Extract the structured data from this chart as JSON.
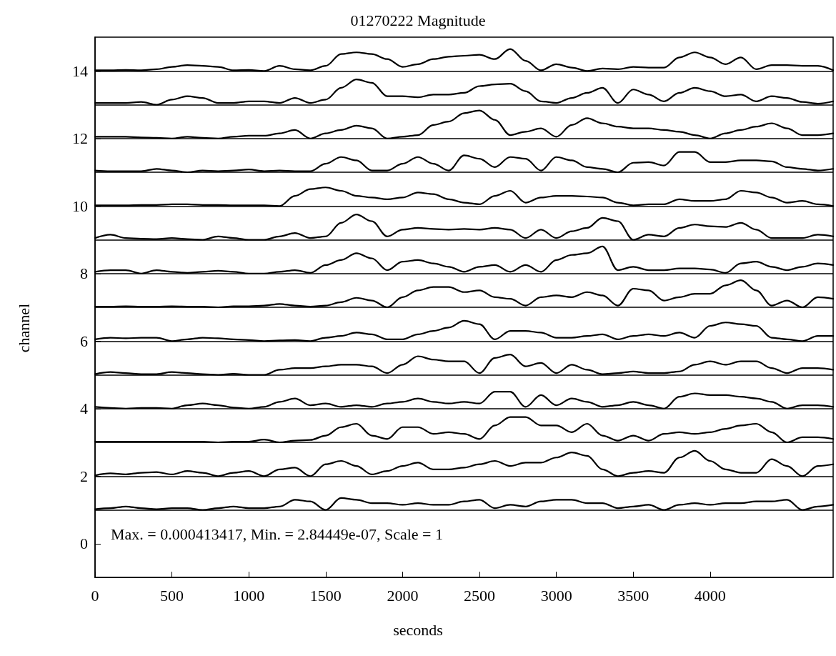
{
  "chart_data": {
    "type": "line",
    "title": "01270222 Magnitude",
    "xlabel": "seconds",
    "ylabel": "channel",
    "annotations": [
      "Max. = 0.000413417, Min. = 2.84449e-07, Scale = 1"
    ],
    "xlim": [
      0,
      4800
    ],
    "xticks": [
      0,
      500,
      1000,
      1500,
      2000,
      2500,
      3000,
      3500,
      4000
    ],
    "ylim": [
      -1,
      15
    ],
    "yticks": [
      0,
      2,
      4,
      6,
      8,
      10,
      12,
      14
    ],
    "marker": "none",
    "line_style": "solid",
    "ref_lines": [
      {
        "axis": "y",
        "value": 14
      },
      {
        "axis": "y",
        "value": 13
      },
      {
        "axis": "y",
        "value": 12
      },
      {
        "axis": "y",
        "value": 11
      },
      {
        "axis": "y",
        "value": 10
      },
      {
        "axis": "y",
        "value": 9
      },
      {
        "axis": "y",
        "value": 8
      },
      {
        "axis": "y",
        "value": 7
      },
      {
        "axis": "y",
        "value": 6
      },
      {
        "axis": "y",
        "value": 5
      },
      {
        "axis": "y",
        "value": 4
      },
      {
        "axis": "y",
        "value": 3
      },
      {
        "axis": "y",
        "value": 2
      },
      {
        "axis": "y",
        "value": 1
      }
    ],
    "x": [
      0,
      100,
      200,
      300,
      400,
      500,
      600,
      700,
      800,
      900,
      1000,
      1100,
      1200,
      1300,
      1400,
      1500,
      1600,
      1700,
      1800,
      1900,
      2000,
      2100,
      2200,
      2300,
      2400,
      2500,
      2600,
      2700,
      2800,
      2900,
      3000,
      3100,
      3200,
      3300,
      3400,
      3500,
      3600,
      3700,
      3800,
      3900,
      4000,
      4100,
      4200,
      4300,
      4400,
      4500,
      4600,
      4700,
      4800
    ],
    "series": [
      {
        "color": "#000000",
        "values": [
          14.02,
          14.02,
          14.03,
          14.02,
          14.05,
          14.12,
          14.17,
          14.15,
          14.12,
          14.02,
          14.03,
          14,
          14.15,
          14.05,
          14.02,
          14.15,
          14.5,
          14.55,
          14.5,
          14.35,
          14.12,
          14.2,
          14.35,
          14.42,
          14.45,
          14.48,
          14.35,
          14.65,
          14.3,
          14.02,
          14.2,
          14.1,
          14,
          14.07,
          14.05,
          14.12,
          14.1,
          14.1,
          14.4,
          14.55,
          14.4,
          14.2,
          14.4,
          14.05,
          14.17,
          14.17,
          14.15,
          14.15,
          14.02
        ]
      },
      {
        "color": "#000000",
        "values": [
          13.05,
          13.05,
          13.05,
          13.08,
          13,
          13.15,
          13.25,
          13.2,
          13.05,
          13.05,
          13.1,
          13.1,
          13.05,
          13.2,
          13.05,
          13.15,
          13.5,
          13.75,
          13.65,
          13.25,
          13.25,
          13.22,
          13.3,
          13.3,
          13.35,
          13.55,
          13.6,
          13.62,
          13.4,
          13.1,
          13.05,
          13.2,
          13.35,
          13.5,
          13.05,
          13.45,
          13.3,
          13.1,
          13.35,
          13.5,
          13.4,
          13.25,
          13.3,
          13.1,
          13.25,
          13.2,
          13.08,
          13.03,
          13.1
        ]
      },
      {
        "color": "#000000",
        "values": [
          12.05,
          12.05,
          12.05,
          12.03,
          12.02,
          12,
          12.05,
          12.02,
          12,
          12.05,
          12.08,
          12.08,
          12.15,
          12.25,
          12,
          12.15,
          12.25,
          12.38,
          12.3,
          12,
          12.05,
          12.1,
          12.4,
          12.5,
          12.75,
          12.83,
          12.55,
          12.1,
          12.2,
          12.3,
          12.05,
          12.4,
          12.6,
          12.45,
          12.35,
          12.3,
          12.3,
          12.25,
          12.2,
          12.1,
          12,
          12.15,
          12.25,
          12.35,
          12.45,
          12.3,
          12.1,
          12.1,
          12.15
        ]
      },
      {
        "color": "#000000",
        "values": [
          11.05,
          11.03,
          11.03,
          11.03,
          11.1,
          11.05,
          11,
          11.05,
          11.03,
          11.05,
          11.08,
          11.03,
          11.05,
          11.03,
          11.03,
          11.25,
          11.45,
          11.35,
          11.05,
          11.05,
          11.25,
          11.45,
          11.25,
          11.05,
          11.5,
          11.4,
          11.15,
          11.45,
          11.4,
          11.05,
          11.45,
          11.35,
          11.15,
          11.1,
          11,
          11.28,
          11.3,
          11.2,
          11.6,
          11.6,
          11.3,
          11.3,
          11.35,
          11.35,
          11.32,
          11.15,
          11.1,
          11.05,
          11.1
        ]
      },
      {
        "color": "#000000",
        "values": [
          10.02,
          10.02,
          10.02,
          10.03,
          10.03,
          10.05,
          10.05,
          10.03,
          10.03,
          10.02,
          10.02,
          10.02,
          10,
          10.3,
          10.5,
          10.55,
          10.45,
          10.3,
          10.25,
          10.2,
          10.25,
          10.4,
          10.35,
          10.2,
          10.1,
          10.05,
          10.3,
          10.45,
          10.1,
          10.25,
          10.3,
          10.3,
          10.28,
          10.25,
          10.1,
          10.02,
          10.05,
          10.05,
          10.2,
          10.15,
          10.15,
          10.2,
          10.45,
          10.4,
          10.25,
          10.1,
          10.15,
          10.05,
          10
        ]
      },
      {
        "color": "#000000",
        "values": [
          9.05,
          9.15,
          9.05,
          9.03,
          9.02,
          9.05,
          9.02,
          9,
          9.1,
          9.05,
          9,
          9,
          9.1,
          9.2,
          9.05,
          9.1,
          9.5,
          9.75,
          9.55,
          9.1,
          9.3,
          9.35,
          9.32,
          9.3,
          9.32,
          9.3,
          9.35,
          9.3,
          9.05,
          9.3,
          9.05,
          9.25,
          9.35,
          9.65,
          9.55,
          9,
          9.15,
          9.1,
          9.35,
          9.45,
          9.4,
          9.38,
          9.5,
          9.3,
          9.05,
          9.05,
          9.05,
          9.15,
          9.1
        ]
      },
      {
        "color": "#000000",
        "values": [
          8.05,
          8.1,
          8.1,
          8,
          8.1,
          8.05,
          8.02,
          8.05,
          8.08,
          8.05,
          8,
          8,
          8.05,
          8.1,
          8.02,
          8.25,
          8.4,
          8.6,
          8.45,
          8.1,
          8.35,
          8.4,
          8.3,
          8.2,
          8.05,
          8.2,
          8.25,
          8.05,
          8.25,
          8.05,
          8.4,
          8.55,
          8.6,
          8.8,
          8.1,
          8.2,
          8.1,
          8.1,
          8.15,
          8.15,
          8.12,
          8.02,
          8.3,
          8.35,
          8.2,
          8.1,
          8.2,
          8.3,
          8.25
        ]
      },
      {
        "color": "#000000",
        "values": [
          7.02,
          7.02,
          7.03,
          7.02,
          7.02,
          7.03,
          7.02,
          7.02,
          7,
          7.03,
          7.03,
          7.05,
          7.1,
          7.05,
          7.02,
          7.05,
          7.15,
          7.28,
          7.2,
          7,
          7.3,
          7.5,
          7.6,
          7.6,
          7.45,
          7.5,
          7.3,
          7.25,
          7.05,
          7.3,
          7.35,
          7.3,
          7.45,
          7.35,
          7.05,
          7.55,
          7.5,
          7.2,
          7.3,
          7.4,
          7.4,
          7.65,
          7.8,
          7.5,
          7.05,
          7.2,
          7,
          7.3,
          7.25
        ]
      },
      {
        "color": "#000000",
        "values": [
          6.05,
          6.1,
          6.08,
          6.1,
          6.1,
          6,
          6.05,
          6.1,
          6.08,
          6.05,
          6.03,
          6,
          6.02,
          6.03,
          6,
          6.1,
          6.15,
          6.25,
          6.2,
          6.05,
          6.05,
          6.2,
          6.3,
          6.4,
          6.6,
          6.5,
          6.05,
          6.3,
          6.3,
          6.25,
          6.1,
          6.1,
          6.15,
          6.2,
          6.05,
          6.15,
          6.2,
          6.15,
          6.25,
          6.1,
          6.45,
          6.55,
          6.5,
          6.45,
          6.1,
          6.05,
          6,
          6.15,
          6.15
        ]
      },
      {
        "color": "#000000",
        "values": [
          5.02,
          5.08,
          5.05,
          5.02,
          5.02,
          5.08,
          5.05,
          5.02,
          5,
          5.03,
          5,
          5,
          5.15,
          5.2,
          5.2,
          5.25,
          5.3,
          5.3,
          5.25,
          5.05,
          5.3,
          5.55,
          5.45,
          5.4,
          5.4,
          5.05,
          5.5,
          5.6,
          5.25,
          5.35,
          5.05,
          5.3,
          5.15,
          5.02,
          5.05,
          5.1,
          5.05,
          5.05,
          5.1,
          5.3,
          5.4,
          5.3,
          5.4,
          5.4,
          5.2,
          5.05,
          5.2,
          5.2,
          5.15
        ]
      },
      {
        "color": "#000000",
        "values": [
          4.05,
          4.02,
          4,
          4.02,
          4.02,
          4,
          4.1,
          4.15,
          4.1,
          4.03,
          4,
          4.05,
          4.2,
          4.3,
          4.1,
          4.15,
          4.05,
          4.1,
          4.05,
          4.15,
          4.2,
          4.3,
          4.2,
          4.15,
          4.2,
          4.15,
          4.5,
          4.5,
          4.05,
          4.4,
          4.1,
          4.3,
          4.2,
          4.05,
          4.1,
          4.2,
          4.1,
          4,
          4.35,
          4.45,
          4.4,
          4.4,
          4.35,
          4.3,
          4.2,
          4,
          4.1,
          4.1,
          4.05
        ]
      },
      {
        "color": "#000000",
        "values": [
          3.02,
          3.02,
          3.02,
          3.02,
          3.02,
          3.02,
          3.02,
          3.02,
          3,
          3.02,
          3.02,
          3.08,
          3,
          3.05,
          3.07,
          3.2,
          3.45,
          3.55,
          3.2,
          3.1,
          3.45,
          3.45,
          3.25,
          3.3,
          3.25,
          3.1,
          3.5,
          3.75,
          3.75,
          3.5,
          3.5,
          3.3,
          3.55,
          3.2,
          3.05,
          3.2,
          3.05,
          3.25,
          3.3,
          3.25,
          3.3,
          3.4,
          3.5,
          3.55,
          3.3,
          3,
          3.15,
          3.15,
          3.1
        ]
      },
      {
        "color": "#000000",
        "values": [
          2.02,
          2.08,
          2.05,
          2.1,
          2.12,
          2.05,
          2.15,
          2.1,
          2,
          2.1,
          2.15,
          2,
          2.2,
          2.25,
          2,
          2.35,
          2.45,
          2.3,
          2.05,
          2.15,
          2.3,
          2.4,
          2.2,
          2.2,
          2.25,
          2.35,
          2.45,
          2.3,
          2.4,
          2.4,
          2.55,
          2.7,
          2.6,
          2.2,
          2,
          2.1,
          2.15,
          2.1,
          2.55,
          2.75,
          2.45,
          2.2,
          2.1,
          2.1,
          2.5,
          2.3,
          2,
          2.3,
          2.35
        ]
      },
      {
        "color": "#000000",
        "values": [
          1.02,
          1.05,
          1.1,
          1.05,
          1.02,
          1.05,
          1.05,
          1,
          1.05,
          1.1,
          1.05,
          1.05,
          1.1,
          1.3,
          1.25,
          1,
          1.35,
          1.3,
          1.2,
          1.2,
          1.15,
          1.2,
          1.15,
          1.15,
          1.25,
          1.3,
          1.05,
          1.15,
          1.1,
          1.25,
          1.3,
          1.3,
          1.2,
          1.2,
          1.05,
          1.1,
          1.15,
          1,
          1.15,
          1.2,
          1.15,
          1.2,
          1.2,
          1.25,
          1.25,
          1.3,
          1,
          1.1,
          1.15
        ]
      }
    ]
  }
}
